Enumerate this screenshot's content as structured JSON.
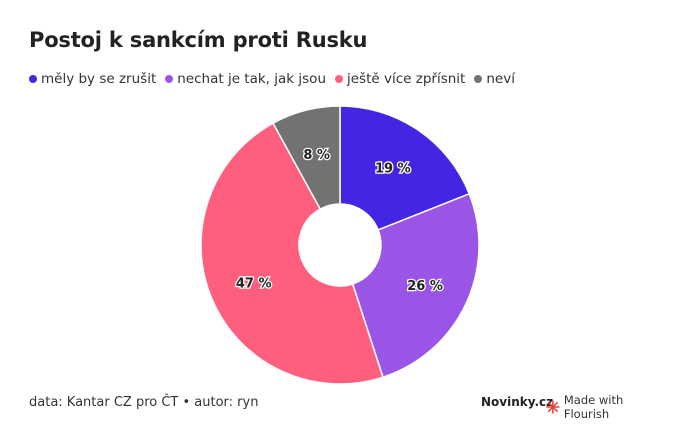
{
  "header": {
    "title": "Postoj k sankcím proti Rusku"
  },
  "chart_data": {
    "type": "pie",
    "style": "donut",
    "title": "Postoj k sankcím proti Rusku",
    "categories": [
      "měly by se zrušit",
      "nechat je tak, jak jsou",
      "ještě více zpřísnit",
      "neví"
    ],
    "values": [
      19,
      26,
      47,
      8
    ],
    "value_labels": [
      "19 %",
      "26 %",
      "47 %",
      "8 %"
    ],
    "colors": [
      "#4326e4",
      "#9b55e6",
      "#fe5f7f",
      "#727272"
    ],
    "legend_position": "top-left"
  },
  "footer": {
    "source": "data: Kantar CZ pro ČT • autor: ryn",
    "brand": "Novinky.cz",
    "flourish": "Made with Flourish",
    "flourish_color": "#e8443a"
  }
}
